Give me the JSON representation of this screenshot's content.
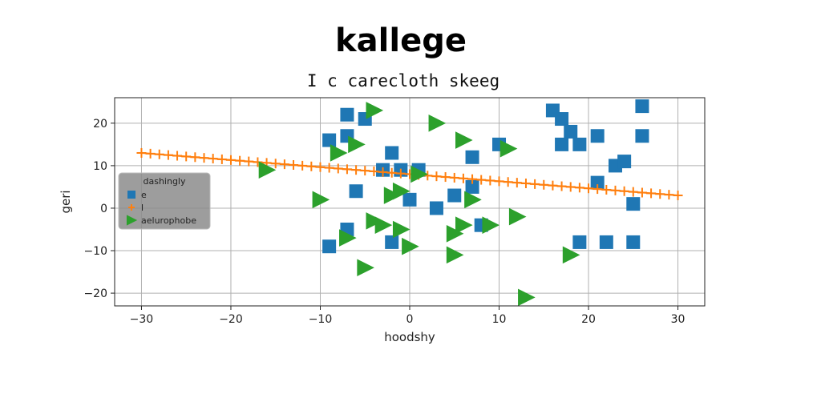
{
  "chart_data": {
    "type": "scatter",
    "title": "kallege",
    "subtitle": "I c carecloth skeeg",
    "xlabel": "hoodshy",
    "ylabel": "geri",
    "xlim": [
      -33,
      33
    ],
    "ylim": [
      -23,
      26
    ],
    "xticks": [
      -30,
      -20,
      -10,
      0,
      10,
      20,
      30
    ],
    "yticks": [
      -20,
      -10,
      0,
      10,
      20
    ],
    "grid": true,
    "legend": {
      "title": "dashingly",
      "placement": "center-left"
    },
    "series": [
      {
        "name": "e",
        "marker": "square",
        "color": "#1f77b4",
        "points": [
          [
            -7,
            22
          ],
          [
            -5,
            21
          ],
          [
            -9,
            16
          ],
          [
            -7,
            17
          ],
          [
            -2,
            13
          ],
          [
            -3,
            9
          ],
          [
            1,
            9
          ],
          [
            -1,
            9
          ],
          [
            -6,
            4
          ],
          [
            0,
            2
          ],
          [
            -7,
            -5
          ],
          [
            -9,
            -9
          ],
          [
            -2,
            -8
          ],
          [
            3,
            0
          ],
          [
            5,
            3
          ],
          [
            7,
            5
          ],
          [
            7,
            12
          ],
          [
            10,
            15
          ],
          [
            8,
            -4
          ],
          [
            16,
            23
          ],
          [
            17,
            21
          ],
          [
            18,
            18
          ],
          [
            19,
            15
          ],
          [
            17,
            15
          ],
          [
            21,
            17
          ],
          [
            26,
            24
          ],
          [
            26,
            17
          ],
          [
            23,
            10
          ],
          [
            24,
            11
          ],
          [
            21,
            6
          ],
          [
            25,
            1
          ],
          [
            19,
            -8
          ],
          [
            22,
            -8
          ],
          [
            25,
            -8
          ]
        ]
      },
      {
        "name": "l",
        "marker": "plus-line",
        "color": "#ff7f0e",
        "x_start": -30,
        "x_end": 30,
        "y_start": 13,
        "y_end": 3,
        "n_points": 61
      },
      {
        "name": "aelurophobe",
        "marker": "triangle-right",
        "color": "#2ca02c",
        "points": [
          [
            -4,
            23
          ],
          [
            -6,
            15
          ],
          [
            -8,
            13
          ],
          [
            3,
            20
          ],
          [
            6,
            16
          ],
          [
            11,
            14
          ],
          [
            -16,
            9
          ],
          [
            1,
            8
          ],
          [
            -10,
            2
          ],
          [
            -2,
            3
          ],
          [
            -1,
            4
          ],
          [
            7,
            2
          ],
          [
            -4,
            -3
          ],
          [
            -3,
            -4
          ],
          [
            -1,
            -5
          ],
          [
            -7,
            -7
          ],
          [
            0,
            -9
          ],
          [
            5,
            -6
          ],
          [
            5,
            -11
          ],
          [
            6,
            -4
          ],
          [
            9,
            -4
          ],
          [
            12,
            -2
          ],
          [
            -5,
            -14
          ],
          [
            18,
            -11
          ],
          [
            13,
            -21
          ]
        ]
      }
    ]
  }
}
